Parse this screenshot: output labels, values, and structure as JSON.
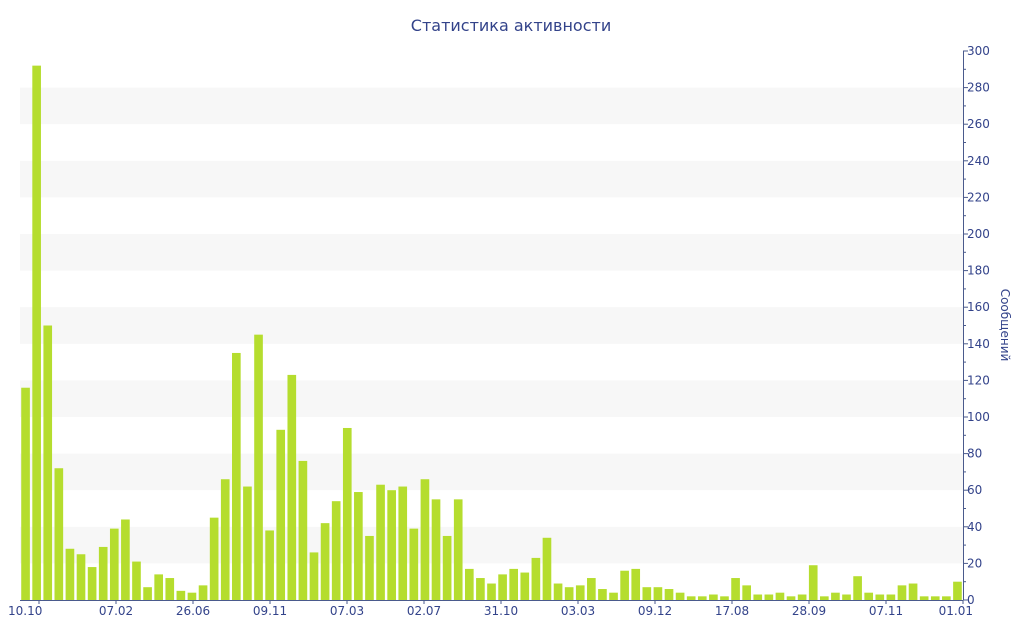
{
  "chart_data": {
    "type": "bar",
    "title": "Статистика активности",
    "ylabel": "Сообщений",
    "ylim": [
      0,
      300
    ],
    "y_ticks": [
      0,
      20,
      40,
      60,
      80,
      100,
      120,
      140,
      160,
      180,
      200,
      220,
      240,
      260,
      280,
      300
    ],
    "y_axis_position": "right",
    "grid": "alternating horizontal bands",
    "x_tick_labels": [
      "10.10",
      "07.02",
      "26.06",
      "09.11",
      "07.03",
      "02.07",
      "31.10",
      "03.03",
      "09.12",
      "17.08",
      "28.09",
      "07.11",
      "01.01"
    ],
    "bar_color": "#b5dd2e",
    "values": [
      116,
      292,
      150,
      72,
      28,
      25,
      18,
      29,
      39,
      44,
      21,
      7,
      14,
      12,
      5,
      4,
      8,
      45,
      66,
      135,
      62,
      145,
      38,
      93,
      123,
      76,
      26,
      42,
      54,
      94,
      59,
      35,
      63,
      60,
      62,
      39,
      66,
      55,
      35,
      55,
      17,
      12,
      9,
      14,
      17,
      15,
      23,
      34,
      9,
      7,
      8,
      12,
      6,
      4,
      16,
      17,
      7,
      7,
      6,
      4,
      2,
      2,
      3,
      2,
      12,
      8,
      3,
      3,
      4,
      2,
      3,
      19,
      2,
      4,
      3,
      13,
      4,
      3,
      3,
      8,
      9,
      2,
      2,
      2,
      10
    ]
  }
}
